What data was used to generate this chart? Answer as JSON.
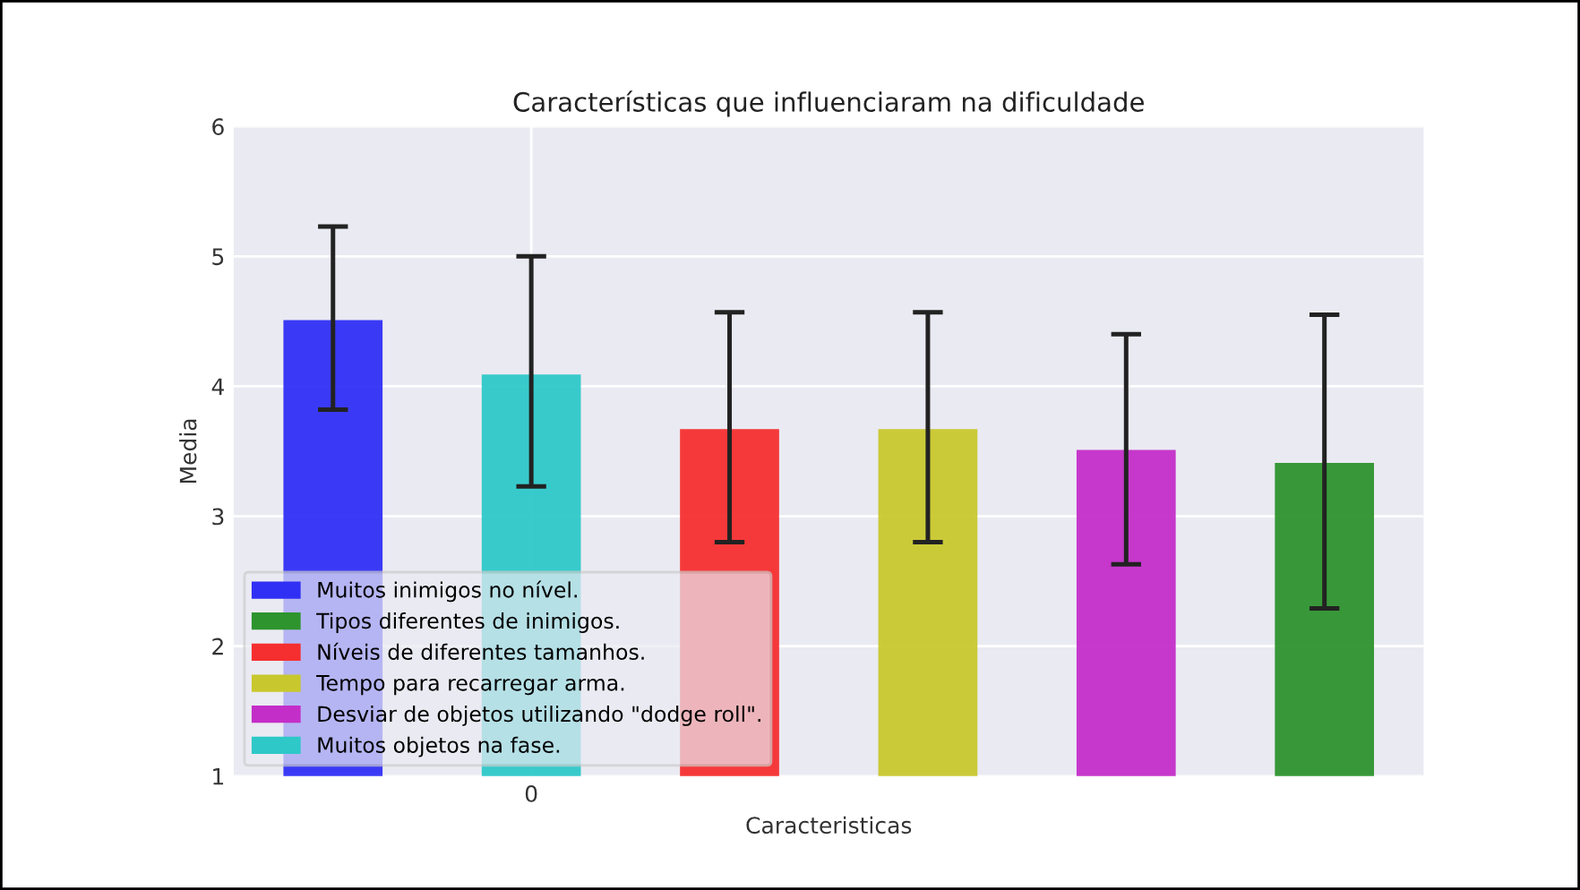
{
  "chart_data": {
    "type": "bar",
    "title": "Características que influenciaram na dificuldade",
    "xlabel": "Caracteristicas",
    "ylabel": "Media",
    "categories": [
      null,
      "0",
      null,
      null,
      null,
      null
    ],
    "ylim": [
      1,
      6
    ],
    "yticks": [
      1,
      2,
      3,
      4,
      5,
      6
    ],
    "grid": true,
    "legend": "bottom left",
    "series": [
      {
        "name": "Muitos inimigos no nível.",
        "color": "#3030f5",
        "values": [
          4.51,
          null,
          null,
          null,
          null,
          null
        ],
        "errors": [
          [
            3.82,
            5.23
          ],
          null,
          null,
          null,
          null,
          null
        ]
      },
      {
        "name": "Tipos diferentes de inimigos.",
        "color": "#2e942e",
        "values": [
          null,
          null,
          null,
          null,
          null,
          3.41
        ],
        "errors": [
          null,
          null,
          null,
          null,
          null,
          [
            2.29,
            4.55
          ]
        ]
      },
      {
        "name": "Níveis de diferentes tamanhos.",
        "color": "#f52f2f",
        "values": [
          null,
          null,
          3.67,
          null,
          null,
          null
        ],
        "errors": [
          null,
          null,
          [
            2.8,
            4.57
          ],
          null,
          null,
          null
        ]
      },
      {
        "name": "Tempo para recarregar arma.",
        "color": "#c8c82e",
        "values": [
          null,
          null,
          null,
          3.67,
          null,
          null
        ],
        "errors": [
          null,
          null,
          null,
          [
            2.8,
            4.57
          ],
          null,
          null
        ]
      },
      {
        "name": "Desviar de objetos utilizando \"dodge roll\".",
        "color": "#c42ec8",
        "values": [
          null,
          null,
          null,
          null,
          3.51,
          null
        ],
        "errors": [
          null,
          null,
          null,
          null,
          [
            2.63,
            4.4
          ],
          null
        ]
      },
      {
        "name": "Muitos objetos na fase.",
        "color": "#2ec8c8",
        "values": [
          null,
          4.09,
          null,
          null,
          null,
          null
        ],
        "errors": [
          null,
          [
            3.23,
            5.0
          ],
          null,
          null,
          null,
          null
        ]
      }
    ]
  }
}
